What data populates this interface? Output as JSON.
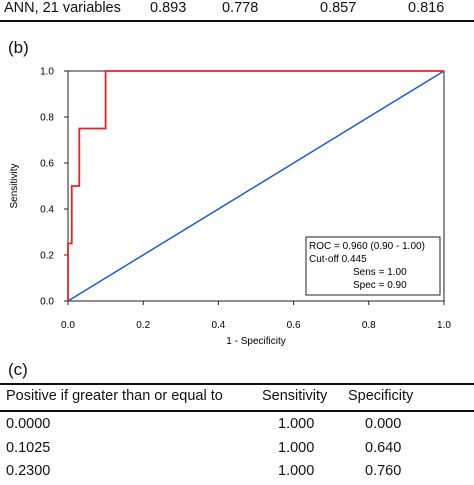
{
  "table_b_last_row": {
    "label": "ANN, 21 variables",
    "v1": "0.893",
    "v2": "0.778",
    "v3": "0.857",
    "v4": "0.816"
  },
  "panel_b_label": "(b)",
  "panel_c_label": "(c)",
  "chart_data": {
    "type": "line",
    "xlabel": "1 - Specificity",
    "ylabel": "Sensitivity",
    "xlim": [
      0,
      1
    ],
    "ylim": [
      0,
      1
    ],
    "x_ticks": [
      "0.0",
      "0.2",
      "0.4",
      "0.6",
      "0.8",
      "1.0"
    ],
    "y_ticks": [
      "0.0",
      "0.2",
      "0.4",
      "0.6",
      "0.8",
      "1.0"
    ],
    "grid": false,
    "series": [
      {
        "color": "#e8222a",
        "x": [
          0,
          0,
          0.01,
          0.01,
          0.03,
          0.03,
          0.04,
          0.04,
          0.1,
          0.1,
          1.0
        ],
        "y": [
          0,
          0.25,
          0.25,
          0.5,
          0.5,
          0.75,
          0.75,
          0.75,
          0.75,
          1.0,
          1.0
        ]
      },
      {
        "color": "#1f5cc4",
        "x": [
          0,
          1
        ],
        "y": [
          0,
          1
        ]
      }
    ],
    "annotation": {
      "lines": [
        "ROC = 0.960 (0.90 - 1.00)",
        "Cut-off 0.445",
        "Sens = 1.00",
        "Spec = 0.90"
      ],
      "placement": "bottom-right"
    }
  },
  "table_c": {
    "headers": [
      "Positive if greater than or equal to",
      "Sensitivity",
      "Specificity"
    ],
    "rows": [
      [
        "0.0000",
        "1.000",
        "0.000"
      ],
      [
        "0.1025",
        "1.000",
        "0.640"
      ],
      [
        "0.2300",
        "1.000",
        "0.760"
      ]
    ]
  }
}
